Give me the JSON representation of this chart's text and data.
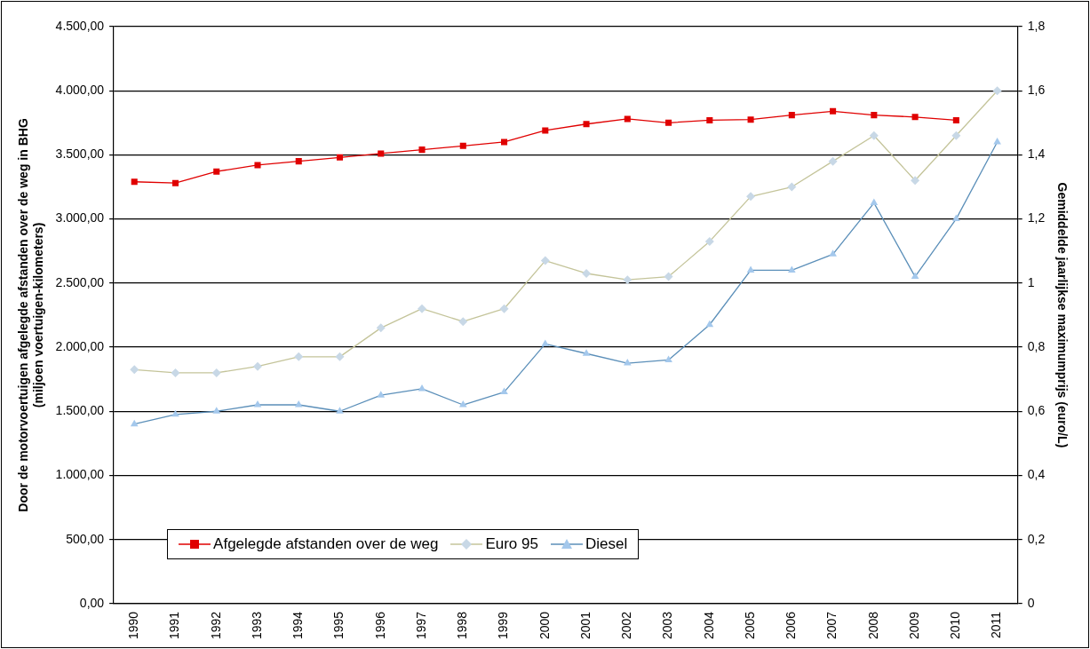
{
  "chart_data": {
    "type": "line",
    "ylabel": "Door de motorvoertuigen afgelegde afstanden over de weg in BHG\n(miljoen voertuigen-kilometers)",
    "y2label": "Gemiddelde jaarlijkse maximumprijs (euro/L)",
    "categories": [
      "1990",
      "1991",
      "1992",
      "1993",
      "1994",
      "1995",
      "1996",
      "1997",
      "1998",
      "1999",
      "2000",
      "2001",
      "2002",
      "2003",
      "2004",
      "2005",
      "2006",
      "2007",
      "2008",
      "2009",
      "2010",
      "2011"
    ],
    "series": [
      {
        "name": "Afgelegde afstanden over de weg",
        "color": "#e00000",
        "marker": "square",
        "values": [
          3290,
          3280,
          3370,
          3420,
          3450,
          3480,
          3510,
          3540,
          3570,
          3600,
          3690,
          3740,
          3780,
          3750,
          3770,
          3775,
          3810,
          3840,
          3810,
          3795,
          3770,
          null
        ]
      },
      {
        "name": "Euro 95",
        "color": "#c4c49a",
        "marker": "diamond",
        "axis": "y2",
        "values": [
          0.73,
          0.72,
          0.72,
          0.74,
          0.77,
          0.77,
          0.86,
          0.92,
          0.88,
          0.92,
          1.07,
          1.03,
          1.01,
          1.02,
          1.13,
          1.27,
          1.3,
          1.38,
          1.46,
          1.32,
          1.46,
          1.6
        ]
      },
      {
        "name": "Diesel",
        "color": "#5b8fb9",
        "marker": "triangle",
        "axis": "y2",
        "values": [
          0.56,
          0.59,
          0.6,
          0.62,
          0.62,
          0.6,
          0.65,
          0.67,
          0.62,
          0.66,
          0.81,
          0.78,
          0.75,
          0.76,
          0.87,
          1.04,
          1.04,
          1.09,
          1.25,
          1.02,
          1.2,
          1.44
        ]
      }
    ],
    "ylim": [
      0,
      4500
    ],
    "yticks": [
      {
        "value": 0,
        "label": "0,00"
      },
      {
        "value": 500,
        "label": "500,00"
      },
      {
        "value": 1000,
        "label": "1.000,00"
      },
      {
        "value": 1500,
        "label": "1.500,00"
      },
      {
        "value": 2000,
        "label": "2.000,00"
      },
      {
        "value": 2500,
        "label": "2.500,00"
      },
      {
        "value": 3000,
        "label": "3.000,00"
      },
      {
        "value": 3500,
        "label": "3.500,00"
      },
      {
        "value": 4000,
        "label": "4.000,00"
      },
      {
        "value": 4500,
        "label": "4.500,00"
      }
    ],
    "y2lim": [
      0,
      1.8
    ],
    "y2ticks": [
      0,
      {
        "value": 0.2,
        "label": "0,2"
      },
      {
        "value": 0.4,
        "label": "0,4"
      },
      {
        "value": 0.6,
        "label": "0,6"
      },
      {
        "value": 0.8,
        "label": "0,8"
      },
      1,
      {
        "value": 1.2,
        "label": "1,2"
      },
      {
        "value": 1.4,
        "label": "1,4"
      },
      {
        "value": 1.6,
        "label": "1,6"
      },
      {
        "value": 1.8,
        "label": "1,8"
      }
    ],
    "grid": "y",
    "legend": "bottom left",
    "line_style": "solid"
  }
}
